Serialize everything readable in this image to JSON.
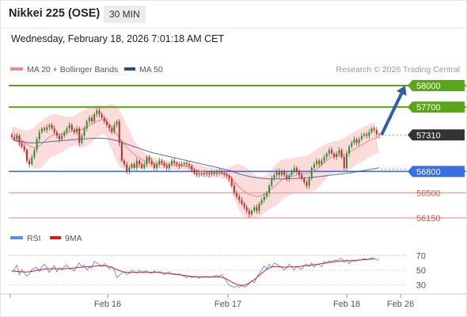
{
  "header": {
    "title": "Nikkei 225 (OSE)",
    "timeframe": "30 MIN",
    "datetime": "Wednesday, February 18, 2026 7:01:18 AM CET"
  },
  "colors": {
    "up": "#2d8a2d",
    "down": "#c62828",
    "bollinger_fill": "#fbd5d5",
    "ma20": "#e58b8b",
    "ma50": "#2b4d8c",
    "green_level": "#5aa618",
    "blue_level": "#3a6fe0",
    "red_level": "#f29a9a",
    "price_tag": "#333333",
    "arrow": "#2f5fa8",
    "rsi": "#5b8fe6",
    "rsi_ma": "#d81c1c"
  },
  "chart_data": [
    {
      "type": "line",
      "panel": "price",
      "legend": [
        {
          "label": "MA 20 + Bollinger Bands",
          "color": "#f08a8a"
        },
        {
          "label": "MA 50",
          "color": "#2b4d8c"
        }
      ],
      "credit": "Research © 2026 Trading Central",
      "legend_placement": "top-left",
      "ylim": [
        56050,
        58100
      ],
      "levels": [
        {
          "value": 58000,
          "label": "58000",
          "kind": "resistance"
        },
        {
          "value": 57700,
          "label": "57700",
          "kind": "resistance"
        },
        {
          "value": 57310,
          "label": "57310",
          "kind": "current"
        },
        {
          "value": 56800,
          "label": "56800",
          "kind": "pivot"
        },
        {
          "value": 56500,
          "label": "56500",
          "kind": "support"
        },
        {
          "value": 56150,
          "label": "56150",
          "kind": "support"
        }
      ],
      "x_ticks": [
        "Feb 16",
        "Feb 17",
        "Feb 18",
        "Feb 26"
      ],
      "close": [
        57280,
        57250,
        57300,
        57200,
        57150,
        57100,
        56950,
        56900,
        57000,
        57100,
        57250,
        57350,
        57400,
        57380,
        57420,
        57450,
        57400,
        57350,
        57300,
        57250,
        57300,
        57350,
        57400,
        57450,
        57380,
        57350,
        57400,
        57200,
        57300,
        57400,
        57500,
        57550,
        57500,
        57600,
        57650,
        57600,
        57550,
        57500,
        57450,
        57400,
        57350,
        57450,
        57500,
        57200,
        56950,
        56900,
        56800,
        56850,
        56900,
        56850,
        56950,
        56900,
        56850,
        56900,
        57000,
        56950,
        56900,
        56850,
        56900,
        56950,
        56920,
        56880,
        56850,
        56900,
        56950,
        56920,
        56900,
        56880,
        56900,
        56920,
        56900,
        56880,
        56820,
        56780,
        56760,
        56770,
        56760,
        56780,
        56770,
        56760,
        56780,
        56770,
        56790,
        56800,
        56780,
        56760,
        56740,
        56700,
        56600,
        56500,
        56450,
        56400,
        56350,
        56300,
        56250,
        56200,
        56250,
        56300,
        56250,
        56350,
        56400,
        56450,
        56500,
        56600,
        56700,
        56750,
        56800,
        56750,
        56800,
        56750,
        56700,
        56750,
        56800,
        56850,
        56800,
        56750,
        56700,
        56650,
        56600,
        56700,
        56850,
        56900,
        56950,
        56900,
        56950,
        57000,
        57050,
        57100,
        57050,
        57000,
        57050,
        57100,
        57000,
        56850,
        57050,
        57150,
        57200,
        57250,
        57200,
        57250,
        57300,
        57320,
        57300,
        57350,
        57400,
        57380,
        57320,
        57310
      ],
      "ma20": [
        57350,
        57330,
        57300,
        57270,
        57240,
        57210,
        57180,
        57160,
        57140,
        57130,
        57140,
        57160,
        57190,
        57220,
        57250,
        57280,
        57300,
        57310,
        57320,
        57320,
        57320,
        57330,
        57340,
        57350,
        57360,
        57370,
        57380,
        57380,
        57390,
        57400,
        57420,
        57440,
        57460,
        57480,
        57500,
        57510,
        57520,
        57520,
        57500,
        57460,
        57420,
        57370,
        57320,
        57270,
        57220,
        57180,
        57140,
        57100,
        57070,
        57040,
        57010,
        56990,
        56970,
        56950,
        56940,
        56930,
        56920,
        56910,
        56905,
        56900,
        56900,
        56895,
        56890,
        56888,
        56886,
        56884,
        56882,
        56880,
        56878,
        56876,
        56870,
        56860,
        56845,
        56830,
        56820,
        56810,
        56800,
        56795,
        56790,
        56785,
        56782,
        56780,
        56778,
        56776,
        56772,
        56768,
        56760,
        56740,
        56700,
        56660,
        56620,
        56580,
        56550,
        56520,
        56500,
        56480,
        56470,
        56460,
        56450,
        56450,
        56460,
        56480,
        56500,
        56530,
        56560,
        56590,
        56620,
        56650,
        56680,
        56700,
        56710,
        56720,
        56730,
        56740,
        56750,
        56755,
        56760,
        56765,
        56770,
        56775,
        56790,
        56810,
        56830,
        56860,
        56890,
        56920,
        56950,
        56980,
        57000,
        57010,
        57020,
        57030,
        57040,
        57040,
        57050,
        57070,
        57090,
        57110,
        57130,
        57150,
        57170,
        57190,
        57210,
        57230,
        57250,
        57260,
        57270,
        57280
      ],
      "upper_band": [
        57430,
        57420,
        57410,
        57400,
        57390,
        57380,
        57380,
        57380,
        57400,
        57420,
        57450,
        57480,
        57510,
        57540,
        57560,
        57580,
        57590,
        57600,
        57600,
        57590,
        57580,
        57570,
        57560,
        57560,
        57570,
        57580,
        57600,
        57620,
        57640,
        57660,
        57680,
        57700,
        57710,
        57720,
        57730,
        57730,
        57720,
        57720,
        57730,
        57740,
        57740,
        57730,
        57700,
        57660,
        57600,
        57530,
        57450,
        57380,
        57300,
        57230,
        57180,
        57140,
        57100,
        57070,
        57040,
        57020,
        57000,
        56990,
        56980,
        56970,
        56965,
        56960,
        56955,
        56950,
        56950,
        56945,
        56940,
        56935,
        56930,
        56925,
        56920,
        56915,
        56910,
        56905,
        56900,
        56890,
        56880,
        56870,
        56860,
        56855,
        56850,
        56845,
        56845,
        56840,
        56840,
        56840,
        56840,
        56850,
        56870,
        56890,
        56900,
        56900,
        56890,
        56870,
        56850,
        56820,
        56790,
        56760,
        56740,
        56730,
        56730,
        56740,
        56760,
        56790,
        56830,
        56870,
        56910,
        56940,
        56960,
        56970,
        56975,
        56980,
        56985,
        56990,
        56995,
        57000,
        57005,
        57010,
        57020,
        57040,
        57060,
        57090,
        57110,
        57130,
        57150,
        57170,
        57190,
        57200,
        57210,
        57220,
        57230,
        57240,
        57250,
        57270,
        57290,
        57310,
        57330,
        57350,
        57370,
        57390,
        57410,
        57430,
        57450,
        57460,
        57470,
        57480
      ],
      "lower_band": [
        57270,
        57240,
        57190,
        57140,
        57090,
        57040,
        56980,
        56940,
        56880,
        56840,
        56830,
        56840,
        56870,
        56900,
        56940,
        56980,
        57010,
        57020,
        57040,
        57050,
        57060,
        57090,
        57120,
        57140,
        57150,
        57160,
        57160,
        57140,
        57140,
        57140,
        57160,
        57180,
        57210,
        57240,
        57270,
        57290,
        57320,
        57320,
        57270,
        57180,
        57100,
        57010,
        56940,
        56880,
        56840,
        56830,
        56830,
        56820,
        56840,
        56850,
        56840,
        56840,
        56840,
        56830,
        56840,
        56840,
        56840,
        56830,
        56830,
        56830,
        56835,
        56830,
        56825,
        56826,
        56822,
        56823,
        56824,
        56825,
        56826,
        56827,
        56820,
        56805,
        56780,
        56755,
        56740,
        56730,
        56720,
        56720,
        56720,
        56715,
        56714,
        56715,
        56711,
        56712,
        56704,
        56696,
        56680,
        56630,
        56530,
        56430,
        56340,
        56260,
        56210,
        56170,
        56150,
        56140,
        56150,
        56160,
        56160,
        56170,
        56190,
        56220,
        56240,
        56270,
        56290,
        56310,
        56330,
        56360,
        56400,
        56430,
        56445,
        56460,
        56475,
        56490,
        56505,
        56510,
        56515,
        56520,
        56520,
        56510,
        56520,
        56530,
        56550,
        56590,
        56630,
        56670,
        56710,
        56750,
        56770,
        56780,
        56790,
        56800,
        56810,
        56800,
        56810,
        56830,
        56850,
        56870,
        56890,
        56910,
        56930,
        56950,
        56970,
        57000,
        57030,
        57040,
        57050,
        57060
      ],
      "ma50": [
        57250,
        57240,
        57230,
        57220,
        57215,
        57210,
        57205,
        57200,
        57200,
        57200,
        57200,
        57202,
        57205,
        57208,
        57210,
        57215,
        57220,
        57222,
        57225,
        57228,
        57230,
        57233,
        57236,
        57240,
        57243,
        57246,
        57248,
        57250,
        57252,
        57255,
        57258,
        57260,
        57262,
        57263,
        57264,
        57265,
        57264,
        57262,
        57258,
        57252,
        57245,
        57238,
        57230,
        57220,
        57208,
        57195,
        57182,
        57170,
        57158,
        57146,
        57134,
        57122,
        57110,
        57098,
        57086,
        57075,
        57065,
        57056,
        57048,
        57040,
        57032,
        57024,
        57016,
        57008,
        57000,
        56992,
        56984,
        56976,
        56968,
        56960,
        56952,
        56944,
        56936,
        56928,
        56920,
        56912,
        56904,
        56896,
        56888,
        56880,
        56872,
        56864,
        56856,
        56848,
        56840,
        56832,
        56824,
        56814,
        56802,
        56790,
        56778,
        56766,
        56756,
        56746,
        56738,
        56730,
        56724,
        56718,
        56712,
        56708,
        56704,
        56700,
        56698,
        56696,
        56695,
        56694,
        56694,
        56694,
        56694,
        56695,
        56696,
        56697,
        56698,
        56700,
        56702,
        56704,
        56706,
        56708,
        56710,
        56712,
        56716,
        56720,
        56724,
        56728,
        56732,
        56736,
        56740,
        56745,
        56750,
        56754,
        56758,
        56762,
        56766,
        56770,
        56774,
        56778,
        56784,
        56790,
        56796,
        56802,
        56808,
        56814,
        56820,
        56826,
        56832,
        56838,
        56844,
        56850
      ],
      "forecast_arrow": {
        "from": 57310,
        "to": 58000
      }
    },
    {
      "type": "line",
      "panel": "rsi",
      "legend": [
        {
          "label": "RSI",
          "color": "#5b8fe6"
        },
        {
          "label": "9MA",
          "color": "#d81c1c"
        }
      ],
      "ylim": [
        20,
        80
      ],
      "y_ticks": [
        70,
        50,
        30
      ],
      "rsi": [
        48,
        51,
        57,
        44,
        51,
        46,
        42,
        45,
        51,
        53,
        54,
        48,
        55,
        58,
        54,
        47,
        52,
        56,
        48,
        53,
        50,
        55,
        57,
        52,
        51,
        49,
        56,
        60,
        55,
        57,
        50,
        54,
        53,
        62,
        60,
        58,
        55,
        59,
        56,
        52,
        55,
        50,
        40,
        43,
        46,
        48,
        44,
        46,
        50,
        48,
        46,
        50,
        48,
        48,
        49,
        47,
        46,
        49,
        47,
        48,
        47,
        44,
        46,
        48,
        45,
        44,
        44,
        45,
        43,
        42,
        40,
        42,
        40,
        42,
        41,
        39,
        42,
        40,
        42,
        40,
        41,
        42,
        43,
        42,
        44,
        40,
        34,
        30,
        28,
        27,
        29,
        27,
        30,
        27,
        29,
        32,
        36,
        33,
        40,
        46,
        50,
        56,
        52,
        58,
        54,
        60,
        58,
        56,
        54,
        50,
        53,
        58,
        55,
        50,
        55,
        53,
        51,
        57,
        58,
        55,
        60,
        54,
        58,
        57,
        55,
        62,
        60,
        63,
        61,
        64,
        63,
        65,
        66,
        61,
        64,
        59,
        63,
        62,
        63,
        64,
        64,
        66,
        64,
        65,
        67,
        66,
        64,
        64
      ],
      "rsi_ma": [
        49,
        48.8,
        48.5,
        48,
        48,
        47.8,
        47.5,
        48,
        48.5,
        49,
        50,
        51,
        51,
        51.5,
        52,
        52,
        52,
        52,
        52,
        52,
        52,
        52,
        52.5,
        52.5,
        53,
        53,
        53.5,
        54,
        54,
        54.5,
        54.5,
        55,
        55,
        55.5,
        56,
        56,
        56,
        56,
        55.5,
        55,
        54,
        52.5,
        51,
        49.5,
        48.5,
        47.5,
        47,
        47,
        47,
        47,
        47,
        47,
        47,
        47,
        47,
        47,
        47,
        47,
        47,
        47,
        46.5,
        46,
        46,
        45.5,
        45,
        45,
        44.5,
        44,
        43.5,
        43,
        42.5,
        42,
        41.5,
        41,
        41,
        41,
        41,
        41,
        41,
        41,
        41,
        41,
        41,
        41,
        40.5,
        39.5,
        38,
        36,
        34,
        32.5,
        31,
        30,
        29.5,
        30,
        31,
        33,
        35,
        37,
        40,
        43,
        46,
        48.5,
        51,
        53,
        54.5,
        55,
        55,
        54.5,
        54.5,
        54,
        54,
        54.5,
        54.5,
        54.5,
        55,
        55,
        55.5,
        56,
        56,
        56.5,
        57,
        57.5,
        58,
        58.5,
        59,
        59.5,
        60,
        60.5,
        61,
        61.5,
        62,
        62,
        62.5,
        62.5,
        63,
        63,
        63,
        63.5,
        63.5,
        64,
        64,
        64.5,
        64.5,
        65,
        65,
        65
      ]
    }
  ]
}
